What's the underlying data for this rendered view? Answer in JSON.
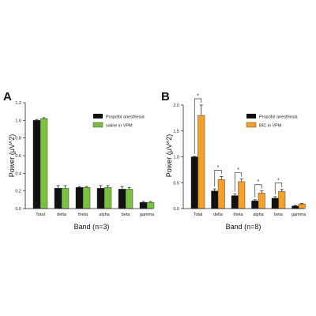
{
  "colors": {
    "baseline": "#111111",
    "saline": "#7ac143",
    "bic": "#f5a02a",
    "axis": "#222222"
  },
  "chart_data": [
    {
      "panel": "A",
      "type": "bar",
      "categories": [
        "Total",
        "delta",
        "theta",
        "alpha",
        "beta",
        "gamma"
      ],
      "series": [
        {
          "name": "Propofol anesthesia",
          "values": [
            1.0,
            0.23,
            0.24,
            0.23,
            0.22,
            0.07
          ],
          "errors": [
            0.01,
            0.03,
            0.01,
            0.03,
            0.03,
            0.01
          ]
        },
        {
          "name": "saline in VPM",
          "values": [
            1.02,
            0.23,
            0.24,
            0.24,
            0.22,
            0.07
          ],
          "errors": [
            0.01,
            0.03,
            0.01,
            0.02,
            0.02,
            0.01
          ]
        }
      ],
      "ylabel": "Power (μV^2)",
      "xlabel": "Band (n=3)",
      "ylim": [
        0,
        1.2
      ],
      "yticks": [
        "0.0",
        "0.2",
        "0.4",
        "0.6",
        "0.8",
        "1.0",
        "1.2"
      ],
      "legend_position": "top-right",
      "significance": []
    },
    {
      "panel": "B",
      "type": "bar",
      "categories": [
        "Total",
        "delta",
        "theta",
        "alpha",
        "beta",
        "gamma"
      ],
      "series": [
        {
          "name": "Propofol anesthesia",
          "values": [
            1.0,
            0.34,
            0.25,
            0.15,
            0.2,
            0.05
          ],
          "errors": [
            0.01,
            0.04,
            0.03,
            0.02,
            0.03,
            0.01
          ]
        },
        {
          "name": "BIC in VPM",
          "values": [
            1.8,
            0.56,
            0.52,
            0.3,
            0.33,
            0.09
          ],
          "errors": [
            0.2,
            0.06,
            0.05,
            0.04,
            0.04,
            0.01
          ]
        }
      ],
      "ylabel": "Power (μV^2)",
      "xlabel": "Band (n=8)",
      "ylim": [
        0,
        2.0
      ],
      "yticks": [
        "0.0",
        "0.5",
        "1.0",
        "1.5",
        "2.0"
      ],
      "legend_position": "top-right",
      "significance": [
        {
          "category": "Total",
          "label": "*"
        },
        {
          "category": "delta",
          "label": "*"
        },
        {
          "category": "theta",
          "label": "*"
        },
        {
          "category": "alpha",
          "label": "*"
        },
        {
          "category": "beta",
          "label": "*"
        }
      ]
    }
  ]
}
